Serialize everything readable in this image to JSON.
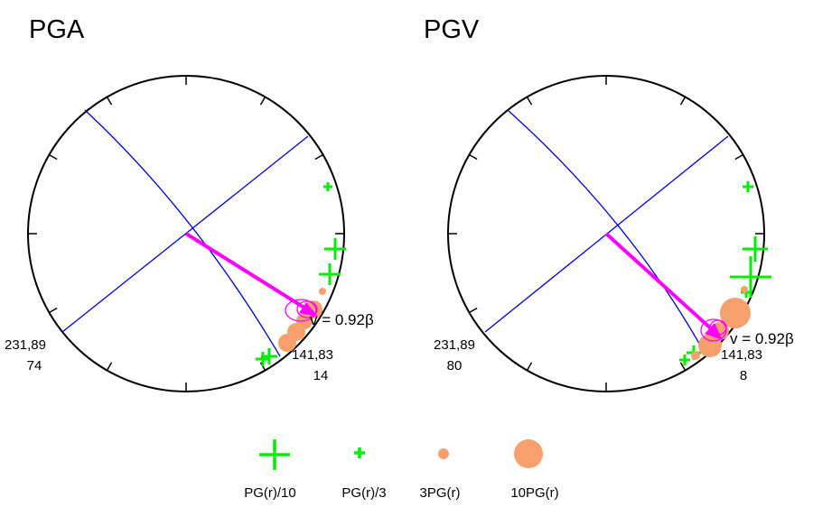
{
  "colors": {
    "plane": "#0000dd",
    "arrow": "#ff00ff",
    "cross": "#00ee00",
    "dot": "#f7a06e",
    "circle": "#000000"
  },
  "panels": [
    {
      "title": "PGA",
      "plane1": "231,89",
      "plane1_rake": "74",
      "plane2": "141,83",
      "plane2_rake": "14",
      "velocity": "v = 0.92β"
    },
    {
      "title": "PGV",
      "plane1": "231,89",
      "plane1_rake": "80",
      "plane2": "141,83",
      "plane2_rake": "8",
      "velocity": "v = 0.92β"
    }
  ],
  "legend": [
    {
      "symbol": "cross-large",
      "label": "PG(r)/10"
    },
    {
      "symbol": "cross-small",
      "label": "PG(r)/3"
    },
    {
      "symbol": "dot-small",
      "label": "3PG(r)"
    },
    {
      "symbol": "dot-large",
      "label": "10PG(r)"
    }
  ]
}
